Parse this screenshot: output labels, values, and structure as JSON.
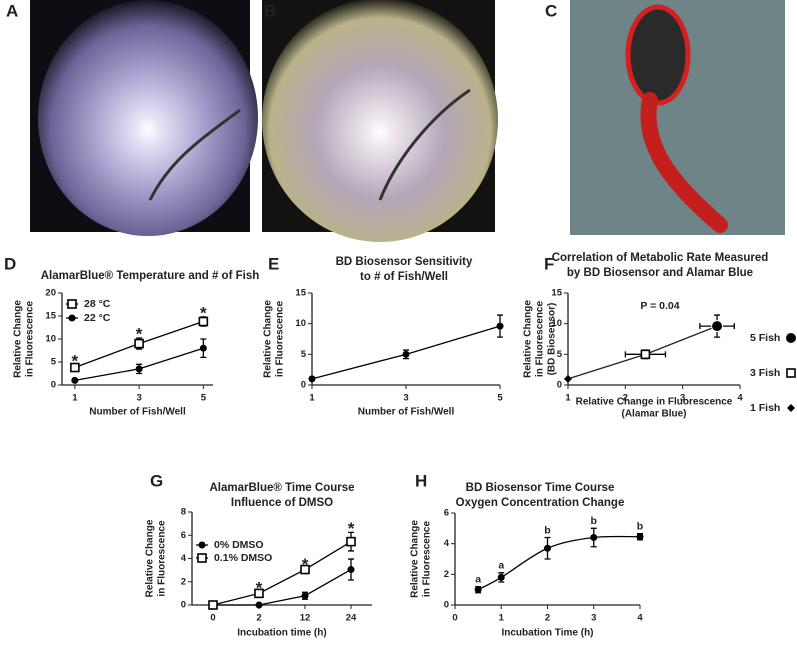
{
  "images": [
    {
      "label": "A"
    },
    {
      "label": "B"
    },
    {
      "label": "C"
    }
  ],
  "chart_data": [
    {
      "type": "line",
      "panel": "D",
      "title": [
        "AlamarBlue® Temperature and # of Fish"
      ],
      "xlabel": [
        "Number of Fish/Well"
      ],
      "ylabel": [
        "Relative Change",
        "in Fluorescence"
      ],
      "xlim": [
        0.6,
        5.3
      ],
      "xticks": [
        1,
        3,
        5
      ],
      "ylim": [
        0,
        20
      ],
      "yticks": [
        0,
        5,
        10,
        15,
        20
      ],
      "legend": "upper left",
      "line": "straight",
      "series": [
        {
          "name": "28 °C",
          "color": "#000000",
          "marker": "open-square",
          "x": [
            1,
            3,
            5
          ],
          "values": [
            3.8,
            9,
            13.8
          ],
          "errors": [
            0.5,
            1.2,
            1
          ],
          "point_labels": [
            "*",
            "*",
            "*"
          ]
        },
        {
          "name": "22 °C",
          "color": "#000000",
          "marker": "circle",
          "x": [
            1,
            3,
            5
          ],
          "values": [
            1,
            3.5,
            8
          ],
          "errors": [
            0.2,
            1,
            2
          ]
        }
      ]
    },
    {
      "type": "line",
      "panel": "E",
      "title": [
        "BD Biosensor Sensitivity",
        "to # of Fish/Well"
      ],
      "xlabel": [
        "Number of Fish/Well"
      ],
      "ylabel": [
        "Relative Change",
        "in Fluorescence"
      ],
      "xlim": [
        1,
        5
      ],
      "xticks": [
        1,
        3,
        5
      ],
      "ylim": [
        0,
        15
      ],
      "yticks": [
        0,
        5,
        10,
        15
      ],
      "line": "straight",
      "series": [
        {
          "color": "#000000",
          "marker": "circle",
          "x": [
            1,
            3,
            5
          ],
          "values": [
            1,
            5,
            9.6
          ],
          "errors": [
            0,
            0.7,
            1.8
          ]
        }
      ]
    },
    {
      "type": "scatter",
      "panel": "F",
      "title": [
        "Correlation of Metabolic Rate Measured",
        "by BD Biosensor and Alamar Blue"
      ],
      "xlabel": [
        "Relative Change in Fluorescence",
        "(Alamar Blue)"
      ],
      "ylabel": [
        "Relative Change",
        "in Fluorescence",
        "(BD Biosensor)"
      ],
      "annotation": "P = 0.04",
      "xlim": [
        1,
        4
      ],
      "xticks": [
        1,
        2,
        3,
        4
      ],
      "ylim": [
        0,
        15
      ],
      "yticks": [
        0,
        5,
        10,
        15
      ],
      "legend": "right",
      "line": "straight",
      "series": [
        {
          "name": "5 Fish",
          "color": "#000000",
          "marker": "big-circle",
          "x": [
            3.6
          ],
          "values": [
            9.6
          ],
          "errors": [
            1.8
          ],
          "xerrors": [
            0.3
          ]
        },
        {
          "name": "3 Fish",
          "color": "#000000",
          "marker": "open-square",
          "x": [
            2.35
          ],
          "values": [
            5
          ],
          "errors": [
            0.7
          ],
          "xerrors": [
            0.35
          ]
        },
        {
          "name": "1 Fish",
          "color": "#000000",
          "marker": "diamond",
          "x": [
            1
          ],
          "values": [
            1
          ],
          "errors": [
            0
          ],
          "xerrors": [
            0
          ]
        }
      ]
    },
    {
      "type": "line",
      "panel": "G",
      "title": [
        "AlamarBlue® Time Course",
        "Influence of DMSO"
      ],
      "xlabel": [
        "Incubation time (h)"
      ],
      "ylabel": [
        "Relative Change",
        "in Fluorescence"
      ],
      "categories": [
        "0",
        "2",
        "12",
        "24"
      ],
      "ylim": [
        0,
        8
      ],
      "yticks": [
        0,
        2,
        4,
        6,
        8
      ],
      "legend": "upper left",
      "line": "straight",
      "series": [
        {
          "name": "0% DMSO",
          "color": "#000000",
          "marker": "circle",
          "values": [
            0,
            0,
            0.8,
            3.05
          ],
          "errors": [
            0.15,
            0,
            0.3,
            0.9
          ]
        },
        {
          "name": "0.1% DMSO",
          "color": "#000000",
          "marker": "open-square",
          "values": [
            0,
            1,
            3.05,
            5.45
          ],
          "errors": [
            0.15,
            0.1,
            0.1,
            0.8
          ],
          "point_labels": [
            null,
            "*",
            "*",
            "*"
          ]
        }
      ]
    },
    {
      "type": "line",
      "panel": "H",
      "title": [
        "BD Biosensor Time Course",
        "Oxygen Concentration Change"
      ],
      "xlabel": [
        "Incubation Time (h)"
      ],
      "ylabel": [
        "Relative Change",
        "in Fluorescence"
      ],
      "xlim": [
        0,
        4
      ],
      "xticks": [
        0,
        1,
        2,
        3,
        4
      ],
      "ylim": [
        0,
        6
      ],
      "yticks": [
        0,
        2,
        4,
        6
      ],
      "line": "smooth",
      "series": [
        {
          "color": "#000000",
          "marker": "circle",
          "x": [
            0.5,
            1,
            2,
            3,
            4
          ],
          "values": [
            1,
            1.8,
            3.7,
            4.4,
            4.45
          ],
          "errors": [
            0.2,
            0.3,
            0.7,
            0.6,
            0.2
          ],
          "point_labels": [
            "a",
            "a",
            "b",
            "b",
            "b"
          ]
        }
      ]
    }
  ]
}
